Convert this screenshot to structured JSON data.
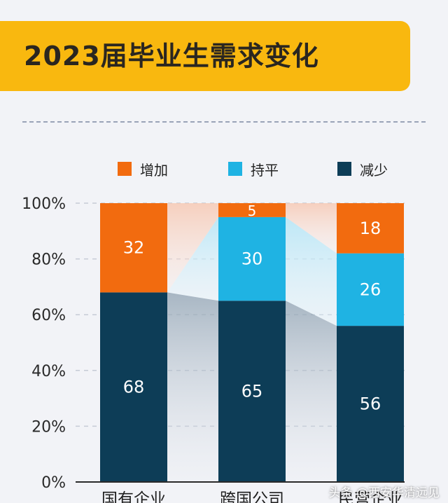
{
  "header": {
    "title": "2023届毕业生需求变化"
  },
  "legend": [
    {
      "label": "增加",
      "color": "#f26b0f"
    },
    {
      "label": "持平",
      "color": "#1fb3e3"
    },
    {
      "label": "减少",
      "color": "#0d3d57"
    }
  ],
  "chart_data": {
    "type": "bar",
    "stacked": true,
    "categories": [
      "国有企业",
      "跨国公司",
      "民营企业"
    ],
    "series": [
      {
        "name": "减少",
        "values": [
          68,
          65,
          56
        ],
        "color": "#0d3d57"
      },
      {
        "name": "持平",
        "values": [
          0,
          30,
          26
        ],
        "color": "#1fb3e3"
      },
      {
        "name": "增加",
        "values": [
          32,
          5,
          18
        ],
        "color": "#f26b0f"
      }
    ],
    "y_ticks": [
      "0%",
      "20%",
      "40%",
      "60%",
      "80%",
      "100%"
    ],
    "ylim": [
      0,
      100
    ],
    "grid": true,
    "legend_position": "top"
  },
  "watermark": "头条 @西安华清远见"
}
